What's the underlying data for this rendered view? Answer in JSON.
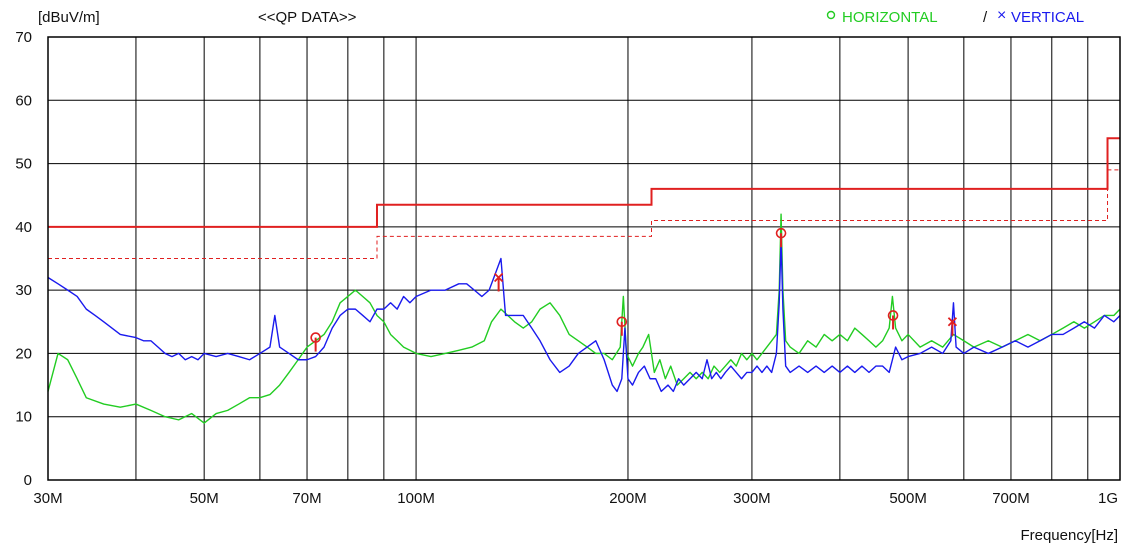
{
  "chart_data": {
    "type": "line",
    "xlabel": "Frequency[Hz]",
    "ylabel": "[dBuV/m]",
    "subtitle": "<<QP DATA>>",
    "x_scale": "log",
    "xlim": [
      30,
      1000
    ],
    "ylim": [
      0,
      70
    ],
    "grid": true,
    "x_ticks": [
      {
        "value": 30,
        "label": "30M"
      },
      {
        "value": 50,
        "label": "50M"
      },
      {
        "value": 70,
        "label": "70M"
      },
      {
        "value": 100,
        "label": "100M"
      },
      {
        "value": 200,
        "label": "200M"
      },
      {
        "value": 300,
        "label": "300M"
      },
      {
        "value": 500,
        "label": "500M"
      },
      {
        "value": 700,
        "label": "700M"
      },
      {
        "value": 1000,
        "label": "1G"
      }
    ],
    "y_ticks": [
      0,
      10,
      20,
      30,
      40,
      50,
      60,
      70
    ],
    "legend": {
      "placement": "top-right",
      "entries": [
        {
          "marker": "o",
          "label": "HORIZONTAL",
          "color": "#22cc22"
        },
        {
          "separator": "/",
          "marker": "×",
          "label": "VERTICAL",
          "color": "#1a1aee"
        }
      ]
    },
    "limits": [
      {
        "style": "solid",
        "color": "#e02020",
        "points": [
          [
            30,
            40
          ],
          [
            88,
            40
          ],
          [
            88,
            43.5
          ],
          [
            216,
            43.5
          ],
          [
            216,
            46
          ],
          [
            960,
            46
          ],
          [
            960,
            54
          ],
          [
            1000,
            54
          ]
        ]
      },
      {
        "style": "dashed",
        "color": "#e02020",
        "points": [
          [
            30,
            35
          ],
          [
            88,
            35
          ],
          [
            88,
            38.5
          ],
          [
            216,
            38.5
          ],
          [
            216,
            41
          ],
          [
            960,
            41
          ],
          [
            960,
            49
          ],
          [
            1000,
            49
          ]
        ]
      }
    ],
    "series": [
      {
        "name": "HORIZONTAL",
        "color": "#22cc22",
        "points": [
          [
            30,
            14
          ],
          [
            31,
            20
          ],
          [
            32,
            19
          ],
          [
            33,
            16
          ],
          [
            34,
            13
          ],
          [
            36,
            12
          ],
          [
            38,
            11.5
          ],
          [
            40,
            12
          ],
          [
            42,
            11
          ],
          [
            44,
            10
          ],
          [
            46,
            9.5
          ],
          [
            48,
            10.5
          ],
          [
            50,
            9
          ],
          [
            52,
            10.5
          ],
          [
            54,
            11
          ],
          [
            56,
            12
          ],
          [
            58,
            13
          ],
          [
            60,
            13
          ],
          [
            62,
            13.5
          ],
          [
            64,
            15
          ],
          [
            66,
            17
          ],
          [
            68,
            19
          ],
          [
            70,
            21
          ],
          [
            72,
            22
          ],
          [
            74,
            23
          ],
          [
            76,
            25
          ],
          [
            78,
            28
          ],
          [
            80,
            29
          ],
          [
            82,
            30
          ],
          [
            84,
            29
          ],
          [
            86,
            28
          ],
          [
            88,
            26
          ],
          [
            90,
            25
          ],
          [
            92,
            23
          ],
          [
            94,
            22
          ],
          [
            96,
            21
          ],
          [
            98,
            20.5
          ],
          [
            100,
            20
          ],
          [
            105,
            19.5
          ],
          [
            110,
            20
          ],
          [
            115,
            20.5
          ],
          [
            120,
            21
          ],
          [
            125,
            22
          ],
          [
            128,
            25
          ],
          [
            132,
            27
          ],
          [
            135,
            26
          ],
          [
            138,
            25
          ],
          [
            142,
            24
          ],
          [
            146,
            25
          ],
          [
            150,
            27
          ],
          [
            155,
            28
          ],
          [
            160,
            26
          ],
          [
            165,
            23
          ],
          [
            170,
            22
          ],
          [
            175,
            21
          ],
          [
            180,
            20
          ],
          [
            185,
            20
          ],
          [
            190,
            19
          ],
          [
            195,
            21
          ],
          [
            197,
            29
          ],
          [
            199,
            20
          ],
          [
            203,
            18
          ],
          [
            207,
            20
          ],
          [
            210,
            21
          ],
          [
            214,
            23
          ],
          [
            218,
            17
          ],
          [
            222,
            19
          ],
          [
            226,
            16
          ],
          [
            230,
            18
          ],
          [
            235,
            15
          ],
          [
            240,
            16
          ],
          [
            245,
            17
          ],
          [
            250,
            16
          ],
          [
            255,
            17
          ],
          [
            260,
            16
          ],
          [
            265,
            18
          ],
          [
            270,
            17
          ],
          [
            275,
            18
          ],
          [
            280,
            19
          ],
          [
            285,
            18
          ],
          [
            290,
            20
          ],
          [
            295,
            19
          ],
          [
            300,
            20
          ],
          [
            305,
            19
          ],
          [
            310,
            20
          ],
          [
            315,
            21
          ],
          [
            320,
            22
          ],
          [
            325,
            23
          ],
          [
            328,
            30
          ],
          [
            330,
            42
          ],
          [
            332,
            30
          ],
          [
            335,
            22
          ],
          [
            340,
            21
          ],
          [
            350,
            20
          ],
          [
            360,
            22
          ],
          [
            370,
            21
          ],
          [
            380,
            23
          ],
          [
            390,
            22
          ],
          [
            400,
            23
          ],
          [
            410,
            22
          ],
          [
            420,
            24
          ],
          [
            430,
            23
          ],
          [
            440,
            22
          ],
          [
            450,
            21
          ],
          [
            460,
            22
          ],
          [
            470,
            24
          ],
          [
            475,
            29
          ],
          [
            480,
            24
          ],
          [
            490,
            22
          ],
          [
            500,
            23
          ],
          [
            520,
            21
          ],
          [
            540,
            22
          ],
          [
            560,
            21
          ],
          [
            580,
            23
          ],
          [
            600,
            22
          ],
          [
            620,
            21
          ],
          [
            650,
            22
          ],
          [
            680,
            21
          ],
          [
            710,
            22
          ],
          [
            740,
            23
          ],
          [
            770,
            22
          ],
          [
            800,
            23
          ],
          [
            830,
            24
          ],
          [
            860,
            25
          ],
          [
            890,
            24
          ],
          [
            920,
            25
          ],
          [
            950,
            26
          ],
          [
            980,
            26
          ],
          [
            1000,
            27
          ]
        ]
      },
      {
        "name": "VERTICAL",
        "color": "#1a1aee",
        "points": [
          [
            30,
            32
          ],
          [
            31,
            31
          ],
          [
            32,
            30
          ],
          [
            33,
            29
          ],
          [
            34,
            27
          ],
          [
            35,
            26
          ],
          [
            36,
            25
          ],
          [
            38,
            23
          ],
          [
            40,
            22.5
          ],
          [
            41,
            22
          ],
          [
            42,
            22
          ],
          [
            43,
            21
          ],
          [
            44,
            20
          ],
          [
            45,
            19.5
          ],
          [
            46,
            20
          ],
          [
            47,
            19
          ],
          [
            48,
            19.5
          ],
          [
            49,
            19
          ],
          [
            50,
            20
          ],
          [
            52,
            19.5
          ],
          [
            54,
            20
          ],
          [
            56,
            19.5
          ],
          [
            58,
            19
          ],
          [
            60,
            20
          ],
          [
            62,
            21
          ],
          [
            63,
            26
          ],
          [
            64,
            21
          ],
          [
            66,
            20
          ],
          [
            68,
            19
          ],
          [
            70,
            19
          ],
          [
            72,
            19.5
          ],
          [
            74,
            21
          ],
          [
            76,
            24
          ],
          [
            78,
            26
          ],
          [
            80,
            27
          ],
          [
            82,
            27
          ],
          [
            84,
            26
          ],
          [
            86,
            25
          ],
          [
            88,
            27
          ],
          [
            90,
            27
          ],
          [
            92,
            28
          ],
          [
            94,
            27
          ],
          [
            96,
            29
          ],
          [
            98,
            28
          ],
          [
            100,
            29
          ],
          [
            105,
            30
          ],
          [
            110,
            30
          ],
          [
            115,
            31
          ],
          [
            118,
            31
          ],
          [
            121,
            30
          ],
          [
            124,
            29
          ],
          [
            127,
            30
          ],
          [
            130,
            33
          ],
          [
            132,
            35
          ],
          [
            134,
            26
          ],
          [
            138,
            26
          ],
          [
            142,
            26
          ],
          [
            146,
            24
          ],
          [
            150,
            22
          ],
          [
            155,
            19
          ],
          [
            160,
            17
          ],
          [
            165,
            18
          ],
          [
            170,
            20
          ],
          [
            175,
            21
          ],
          [
            180,
            22
          ],
          [
            185,
            19
          ],
          [
            190,
            15
          ],
          [
            193,
            14
          ],
          [
            196,
            16
          ],
          [
            198,
            24
          ],
          [
            200,
            16
          ],
          [
            203,
            15
          ],
          [
            207,
            17
          ],
          [
            211,
            18
          ],
          [
            215,
            16
          ],
          [
            219,
            16
          ],
          [
            223,
            14
          ],
          [
            228,
            15
          ],
          [
            232,
            14
          ],
          [
            236,
            16
          ],
          [
            240,
            15
          ],
          [
            245,
            16
          ],
          [
            250,
            17
          ],
          [
            255,
            16
          ],
          [
            259,
            19
          ],
          [
            263,
            16
          ],
          [
            267,
            17
          ],
          [
            271,
            16
          ],
          [
            275,
            17
          ],
          [
            280,
            18
          ],
          [
            285,
            17
          ],
          [
            290,
            16
          ],
          [
            295,
            17
          ],
          [
            300,
            17
          ],
          [
            305,
            18
          ],
          [
            310,
            17
          ],
          [
            315,
            18
          ],
          [
            320,
            17
          ],
          [
            325,
            20
          ],
          [
            328,
            28
          ],
          [
            330,
            38
          ],
          [
            332,
            27
          ],
          [
            335,
            18
          ],
          [
            340,
            17
          ],
          [
            350,
            18
          ],
          [
            360,
            17
          ],
          [
            370,
            18
          ],
          [
            380,
            17
          ],
          [
            390,
            18
          ],
          [
            400,
            17
          ],
          [
            410,
            18
          ],
          [
            420,
            17
          ],
          [
            430,
            18
          ],
          [
            440,
            17
          ],
          [
            450,
            18
          ],
          [
            460,
            18
          ],
          [
            470,
            17
          ],
          [
            475,
            19
          ],
          [
            480,
            21
          ],
          [
            490,
            19
          ],
          [
            500,
            19.5
          ],
          [
            520,
            20
          ],
          [
            540,
            21
          ],
          [
            560,
            20
          ],
          [
            575,
            22
          ],
          [
            580,
            28
          ],
          [
            585,
            21
          ],
          [
            600,
            20
          ],
          [
            620,
            21
          ],
          [
            650,
            20
          ],
          [
            680,
            21
          ],
          [
            710,
            22
          ],
          [
            740,
            21
          ],
          [
            770,
            22
          ],
          [
            800,
            23
          ],
          [
            830,
            23
          ],
          [
            860,
            24
          ],
          [
            890,
            25
          ],
          [
            920,
            24
          ],
          [
            950,
            26
          ],
          [
            980,
            25
          ],
          [
            1000,
            26
          ]
        ]
      }
    ],
    "qp_markers": [
      {
        "x": 72,
        "y": 22.5,
        "marker": "o",
        "polarity": "HORIZONTAL"
      },
      {
        "x": 131,
        "y": 32,
        "marker": "×",
        "polarity": "VERTICAL"
      },
      {
        "x": 196,
        "y": 25,
        "marker": "o",
        "polarity": "HORIZONTAL"
      },
      {
        "x": 330,
        "y": 39,
        "marker": "o",
        "polarity": "HORIZONTAL"
      },
      {
        "x": 476,
        "y": 26,
        "marker": "o",
        "polarity": "HORIZONTAL"
      },
      {
        "x": 578,
        "y": 25,
        "marker": "×",
        "polarity": "VERTICAL"
      }
    ]
  }
}
